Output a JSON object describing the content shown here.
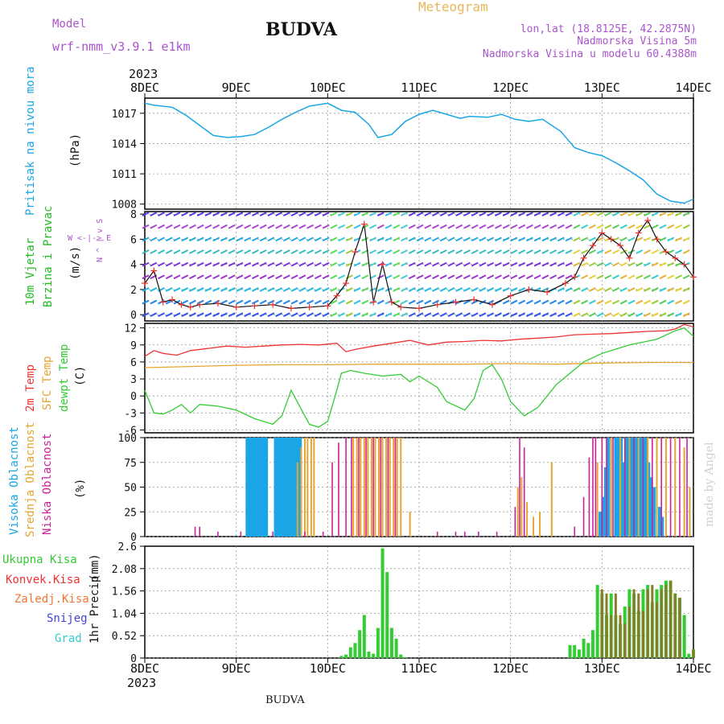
{
  "header": {
    "model_label": "Model",
    "model_name": "wrf-nmm_v3.9.1 e1km",
    "station": "BUDVA",
    "meteogram_label": "Meteogram",
    "lonlat": "lon,lat (18.8125E, 42.2875N)",
    "elevation": "Nadmorska Visina 5m",
    "model_elevation": "Nadmorska Visina u modelu 60.4388m",
    "footer_station": "BUDVA",
    "watermark": "made by Angel",
    "year": "2023"
  },
  "colors": {
    "pressure": "#1aa6e6",
    "wind_label": "#22bb22",
    "temp2m": "#ee3333",
    "sfc": "#e6a532",
    "dewpt": "#33cc33",
    "visoka": "#1aa6e6",
    "srednja": "#e6a532",
    "niska": "#cc2299",
    "ukupna": "#33cc33",
    "konvek": "#ee3333",
    "zaledj": "#ee7733",
    "snijeg": "#4444dd",
    "grad": "#33cccc",
    "purple": "#aa55cc"
  },
  "chart_data": [
    {
      "panel": "pressure",
      "type": "line",
      "ylabel_title": "Pritisak na nivou mora",
      "ylabel_unit": "(hPa)",
      "x_ticks": [
        "8DEC",
        "9DEC",
        "10DEC",
        "11DEC",
        "12DEC",
        "13DEC",
        "14DEC"
      ],
      "yticks": [
        "1017",
        "1014",
        "1011",
        "1008"
      ],
      "ylim": [
        1007.5,
        1018.5
      ],
      "grid": true,
      "series": [
        {
          "x": [
            0,
            0.1,
            0.3,
            0.45,
            0.6,
            0.75,
            0.9,
            1.05,
            1.2,
            1.35,
            1.5,
            1.65,
            1.8,
            2.0,
            2.15,
            2.3,
            2.45,
            2.55,
            2.7,
            2.85,
            3.0,
            3.15,
            3.3,
            3.45,
            3.55,
            3.75,
            3.9,
            4.05,
            4.2,
            4.35,
            4.55,
            4.7,
            4.85,
            5.0,
            5.15,
            5.3,
            5.45,
            5.6,
            5.75,
            5.9,
            6.0
          ],
          "y": [
            1018.0,
            1017.8,
            1017.6,
            1016.8,
            1015.8,
            1014.8,
            1014.6,
            1014.7,
            1014.9,
            1015.6,
            1016.4,
            1017.1,
            1017.7,
            1018.0,
            1017.3,
            1017.1,
            1015.9,
            1014.6,
            1014.9,
            1016.2,
            1016.9,
            1017.3,
            1016.9,
            1016.5,
            1016.7,
            1016.6,
            1016.9,
            1016.4,
            1016.2,
            1016.4,
            1015.2,
            1013.6,
            1013.1,
            1012.8,
            1012.1,
            1011.3,
            1010.4,
            1009.0,
            1008.3,
            1008.1,
            1008.5
          ]
        }
      ]
    },
    {
      "panel": "wind",
      "type": "line",
      "ylabel_title": "10m Vjetar",
      "ylabel_title2": "Brzina i Pravac",
      "ylabel_unit": "(m/s)",
      "compass": "W <-|-> E",
      "compass_vert": "N ^ | v S",
      "yticks": [
        "8",
        "6",
        "4",
        "2",
        "0"
      ],
      "ylim": [
        -0.5,
        8.2
      ],
      "grid": true,
      "series": [
        {
          "name": "speed",
          "x": [
            0,
            0.1,
            0.2,
            0.3,
            0.4,
            0.5,
            0.6,
            0.8,
            1.0,
            1.2,
            1.4,
            1.6,
            1.8,
            2.0,
            2.1,
            2.2,
            2.3,
            2.4,
            2.5,
            2.6,
            2.7,
            2.8,
            3.0,
            3.2,
            3.4,
            3.6,
            3.8,
            4.0,
            4.2,
            4.4,
            4.6,
            4.7,
            4.8,
            4.9,
            5.0,
            5.1,
            5.2,
            5.3,
            5.4,
            5.5,
            5.6,
            5.7,
            5.8,
            5.9,
            6.0
          ],
          "y": [
            2.5,
            3.5,
            1.0,
            1.2,
            0.8,
            0.6,
            0.8,
            0.9,
            0.6,
            0.7,
            0.8,
            0.5,
            0.6,
            0.7,
            1.5,
            2.5,
            5.0,
            7.2,
            1.0,
            4.0,
            1.0,
            0.6,
            0.5,
            0.8,
            1.0,
            1.2,
            0.8,
            1.5,
            2.0,
            1.8,
            2.5,
            3.0,
            4.5,
            5.5,
            6.5,
            6.0,
            5.5,
            4.5,
            6.5,
            7.5,
            6.0,
            5.0,
            4.5,
            4.0,
            3.0
          ]
        }
      ]
    },
    {
      "panel": "temperature",
      "type": "line",
      "ylabel_t1": "2m Temp",
      "ylabel_t2": "SFC Temp",
      "ylabel_t3": "dewpt Temp",
      "ylabel_unit": "(C)",
      "yticks": [
        "12",
        "9",
        "6",
        "3",
        "0",
        "-3",
        "-6"
      ],
      "ylim": [
        -6.5,
        12.8
      ],
      "grid": true,
      "series": [
        {
          "name": "2m Temp",
          "x": [
            0,
            0.1,
            0.2,
            0.35,
            0.5,
            0.7,
            0.9,
            1.1,
            1.3,
            1.5,
            1.7,
            1.9,
            2.1,
            2.2,
            2.3,
            2.5,
            2.7,
            2.9,
            3.1,
            3.3,
            3.5,
            3.7,
            3.9,
            4.1,
            4.3,
            4.5,
            4.7,
            4.9,
            5.1,
            5.3,
            5.5,
            5.7,
            5.8,
            5.9,
            6.0
          ],
          "y": [
            7.0,
            8.0,
            7.5,
            7.2,
            8.0,
            8.4,
            8.8,
            8.6,
            8.8,
            9.0,
            9.1,
            9.0,
            9.3,
            7.8,
            8.2,
            8.8,
            9.3,
            9.8,
            9.0,
            9.5,
            9.6,
            9.8,
            9.7,
            10.0,
            10.2,
            10.4,
            10.8,
            10.9,
            11.0,
            11.2,
            11.4,
            11.5,
            11.8,
            12.6,
            12.2
          ]
        },
        {
          "name": "SFC Temp",
          "x": [
            0,
            0.5,
            1.0,
            1.5,
            2.0,
            2.5,
            3.0,
            3.5,
            4.0,
            4.5,
            5.0,
            5.5,
            6.0
          ],
          "y": [
            5.0,
            5.2,
            5.4,
            5.5,
            5.5,
            5.6,
            5.6,
            5.6,
            5.7,
            5.6,
            5.8,
            5.9,
            5.9
          ]
        },
        {
          "name": "dewpt Temp",
          "x": [
            0,
            0.1,
            0.2,
            0.3,
            0.4,
            0.5,
            0.6,
            0.8,
            1.0,
            1.2,
            1.4,
            1.5,
            1.6,
            1.7,
            1.8,
            1.9,
            2.0,
            2.1,
            2.15,
            2.25,
            2.4,
            2.6,
            2.8,
            2.9,
            3.0,
            3.2,
            3.3,
            3.5,
            3.6,
            3.7,
            3.8,
            3.9,
            4.0,
            4.15,
            4.3,
            4.5,
            4.8,
            5.0,
            5.3,
            5.6,
            5.8,
            5.9,
            6.0
          ],
          "y": [
            1.0,
            -3.0,
            -3.2,
            -2.5,
            -1.5,
            -3.0,
            -1.5,
            -1.8,
            -2.5,
            -4.0,
            -5.0,
            -3.5,
            1.0,
            -2.0,
            -5.0,
            -5.5,
            -4.5,
            1.0,
            4.0,
            4.5,
            4.0,
            3.5,
            3.8,
            2.5,
            3.5,
            1.5,
            -1.0,
            -2.5,
            -0.5,
            4.5,
            5.5,
            3.0,
            -1.0,
            -3.5,
            -2.0,
            2.0,
            6.0,
            7.5,
            9.0,
            10.0,
            11.5,
            12.0,
            10.5
          ]
        }
      ]
    },
    {
      "panel": "clouds",
      "type": "bar",
      "ylabel_v": "Visoka Oblacnost",
      "ylabel_s": "Srednja Oblacnost",
      "ylabel_n": "Niska Oblacnost",
      "ylabel_unit": "(%)",
      "yticks": [
        "100",
        "75",
        "50",
        "25",
        "0"
      ],
      "ylim": [
        0,
        100
      ],
      "grid": true,
      "series": [
        {
          "name": "Visoka Oblacnost",
          "x": [
            1.12,
            1.15,
            1.18,
            1.21,
            1.24,
            1.27,
            1.3,
            1.33,
            1.43,
            1.46,
            1.49,
            1.52,
            1.55,
            1.58,
            1.61,
            1.64,
            1.67,
            1.7,
            4.98,
            5.01,
            5.04,
            5.07,
            5.15,
            5.18,
            5.21,
            5.24,
            5.27,
            5.3,
            5.33,
            5.36,
            5.39,
            5.42,
            5.45,
            5.48,
            5.51,
            5.54,
            5.57,
            5.63,
            5.66
          ],
          "y": [
            100,
            100,
            100,
            100,
            100,
            100,
            100,
            100,
            100,
            100,
            100,
            100,
            100,
            100,
            100,
            100,
            100,
            100,
            25,
            40,
            70,
            100,
            100,
            100,
            100,
            75,
            100,
            100,
            100,
            100,
            100,
            100,
            100,
            100,
            75,
            60,
            50,
            30,
            20
          ]
        },
        {
          "name": "Srednja Oblacnost",
          "x": [
            1.67,
            1.71,
            1.75,
            1.78,
            1.82,
            1.85,
            2.28,
            2.32,
            2.36,
            2.4,
            2.44,
            2.48,
            2.52,
            2.56,
            2.6,
            2.64,
            2.68,
            2.72,
            2.76,
            2.8,
            2.9,
            4.08,
            4.12,
            4.18,
            4.25,
            4.32,
            4.45,
            4.95,
            5.1,
            5.2,
            5.3,
            5.4,
            5.5,
            5.6,
            5.7,
            5.8,
            5.9,
            5.96
          ],
          "y": [
            75,
            90,
            100,
            100,
            100,
            100,
            100,
            100,
            100,
            100,
            100,
            100,
            100,
            100,
            100,
            100,
            100,
            100,
            100,
            100,
            25,
            50,
            60,
            35,
            20,
            25,
            75,
            75,
            100,
            100,
            100,
            100,
            100,
            100,
            100,
            100,
            90,
            50
          ]
        },
        {
          "name": "Niska Oblacnost",
          "x": [
            0.55,
            0.6,
            0.8,
            1.05,
            1.4,
            1.75,
            1.95,
            2.05,
            2.12,
            2.2,
            2.26,
            2.34,
            2.42,
            2.5,
            2.58,
            2.66,
            2.74,
            3.2,
            3.4,
            3.5,
            3.65,
            3.85,
            4.05,
            4.1,
            4.15,
            4.7,
            4.8,
            4.86,
            4.9,
            4.93,
            5.0,
            5.05,
            5.12,
            5.25,
            5.35,
            5.45,
            5.55,
            5.65,
            5.75,
            5.85,
            5.93
          ],
          "y": [
            10,
            10,
            5,
            5,
            5,
            5,
            5,
            75,
            95,
            100,
            100,
            100,
            100,
            100,
            100,
            100,
            100,
            5,
            5,
            5,
            5,
            5,
            30,
            100,
            90,
            10,
            40,
            80,
            100,
            100,
            100,
            100,
            100,
            100,
            100,
            100,
            100,
            100,
            100,
            100,
            100
          ]
        }
      ]
    },
    {
      "panel": "precip",
      "type": "bar",
      "ylabel_title": "1hr Precip",
      "ylabel_unit": "(mm)",
      "legend": [
        "Ukupna Kisa",
        "Konvek.Kisa",
        "Zaledj.Kisa",
        "Snijeg",
        "Grad"
      ],
      "x_ticks": [
        "8DEC",
        "9DEC",
        "10DEC",
        "11DEC",
        "12DEC",
        "13DEC",
        "14DEC"
      ],
      "yticks": [
        "2.6",
        "2.08",
        "1.56",
        "1.04",
        "0.52",
        "0"
      ],
      "ylim": [
        0,
        2.6
      ],
      "grid": true,
      "series": [
        {
          "name": "Ukupna Kisa",
          "x": [
            2.15,
            2.2,
            2.25,
            2.3,
            2.35,
            2.4,
            2.45,
            2.5,
            2.55,
            2.6,
            2.65,
            2.7,
            2.75,
            2.8,
            2.85,
            4.65,
            4.7,
            4.75,
            4.8,
            4.85,
            4.9,
            4.95,
            5.0,
            5.05,
            5.1,
            5.15,
            5.2,
            5.25,
            5.3,
            5.35,
            5.4,
            5.45,
            5.5,
            5.55,
            5.6,
            5.65,
            5.7,
            5.75,
            5.8,
            5.85,
            5.9,
            5.95,
            6.0
          ],
          "y": [
            0.05,
            0.08,
            0.25,
            0.35,
            0.65,
            1.0,
            0.15,
            0.1,
            0.7,
            2.55,
            2.0,
            0.7,
            0.45,
            0.08,
            0.02,
            0.3,
            0.3,
            0.2,
            0.45,
            0.35,
            0.65,
            1.7,
            1.5,
            1.0,
            1.5,
            1.0,
            0.8,
            1.2,
            1.6,
            1.5,
            1.1,
            1.6,
            1.7,
            1.3,
            1.6,
            1.7,
            1.8,
            1.8,
            1.5,
            1.4,
            1.0,
            0.1,
            0.2
          ]
        },
        {
          "name": "Konvek.Kisa",
          "x": [
            5.0,
            5.05,
            5.1,
            5.15,
            5.2,
            5.25,
            5.3,
            5.35,
            5.4,
            5.45,
            5.5,
            5.55,
            5.6,
            5.65,
            5.7,
            5.75,
            5.8,
            5.85,
            6.0
          ],
          "y": [
            1.6,
            1.5,
            1.0,
            1.5,
            1.0,
            0.8,
            1.2,
            1.6,
            1.5,
            1.1,
            1.6,
            1.7,
            1.3,
            1.6,
            1.7,
            1.8,
            1.5,
            1.4,
            0.2
          ]
        }
      ]
    }
  ]
}
